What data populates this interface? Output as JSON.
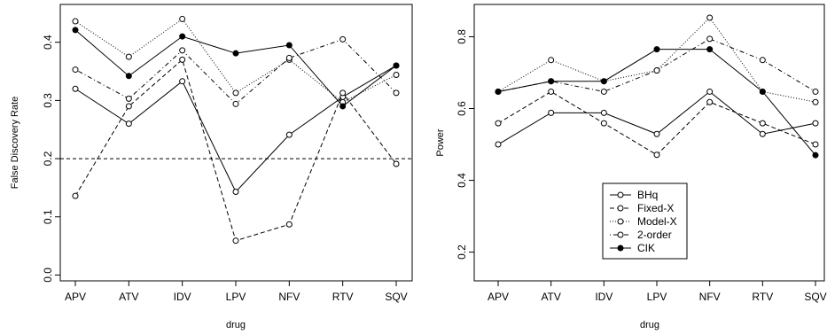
{
  "chart_data": [
    {
      "type": "line",
      "xlabel": "drug",
      "ylabel": "False Discovery Rate",
      "categories": [
        "APV",
        "ATV",
        "IDV",
        "LPV",
        "NFV",
        "RTV",
        "SQV"
      ],
      "y_ticks": [
        "0.0",
        "0.1",
        "0.2",
        "0.3",
        "0.4"
      ],
      "ylim": [
        -0.01,
        0.465
      ],
      "reference_line": 0.2,
      "series": [
        {
          "name": "BHq",
          "marker": "open",
          "line": "solid",
          "values": [
            0.32,
            0.26,
            0.333,
            0.143,
            0.241,
            0.306,
            0.36
          ]
        },
        {
          "name": "Fixed-X",
          "marker": "open",
          "line": "dashed",
          "values": [
            0.136,
            0.29,
            0.37,
            0.059,
            0.087,
            0.313,
            0.191
          ]
        },
        {
          "name": "Model-X",
          "marker": "open",
          "line": "dotted",
          "values": [
            0.436,
            0.375,
            0.44,
            0.313,
            0.37,
            0.297,
            0.344
          ]
        },
        {
          "name": "2-order",
          "marker": "open",
          "line": "dotdash",
          "values": [
            0.353,
            0.303,
            0.386,
            0.294,
            0.373,
            0.405,
            0.313
          ]
        },
        {
          "name": "CIK",
          "marker": "filled",
          "line": "solid",
          "values": [
            0.421,
            0.342,
            0.41,
            0.381,
            0.395,
            0.29,
            0.36
          ]
        }
      ]
    },
    {
      "type": "line",
      "xlabel": "drug",
      "ylabel": "Power",
      "categories": [
        "APV",
        "ATV",
        "IDV",
        "LPV",
        "NFV",
        "RTV",
        "SQV"
      ],
      "y_ticks": [
        "0.2",
        "0.4",
        "0.6",
        "0.8"
      ],
      "ylim": [
        0.12,
        0.89
      ],
      "legend_position": "bottom-center",
      "series": [
        {
          "name": "BHq",
          "marker": "open",
          "line": "solid",
          "values": [
            0.5,
            0.588,
            0.588,
            0.529,
            0.647,
            0.529,
            0.559
          ]
        },
        {
          "name": "Fixed-X",
          "marker": "open",
          "line": "dashed",
          "values": [
            0.559,
            0.647,
            0.559,
            0.471,
            0.618,
            0.559,
            0.5
          ]
        },
        {
          "name": "Model-X",
          "marker": "open",
          "line": "dotted",
          "values": [
            0.647,
            0.735,
            0.676,
            0.706,
            0.853,
            0.647,
            0.618
          ]
        },
        {
          "name": "2-order",
          "marker": "open",
          "line": "dotdash",
          "values": [
            0.647,
            0.676,
            0.647,
            0.706,
            0.794,
            0.735,
            0.647
          ]
        },
        {
          "name": "CIK",
          "marker": "filled",
          "line": "solid",
          "values": [
            0.647,
            0.676,
            0.676,
            0.765,
            0.765,
            0.647,
            0.47
          ]
        }
      ]
    }
  ]
}
